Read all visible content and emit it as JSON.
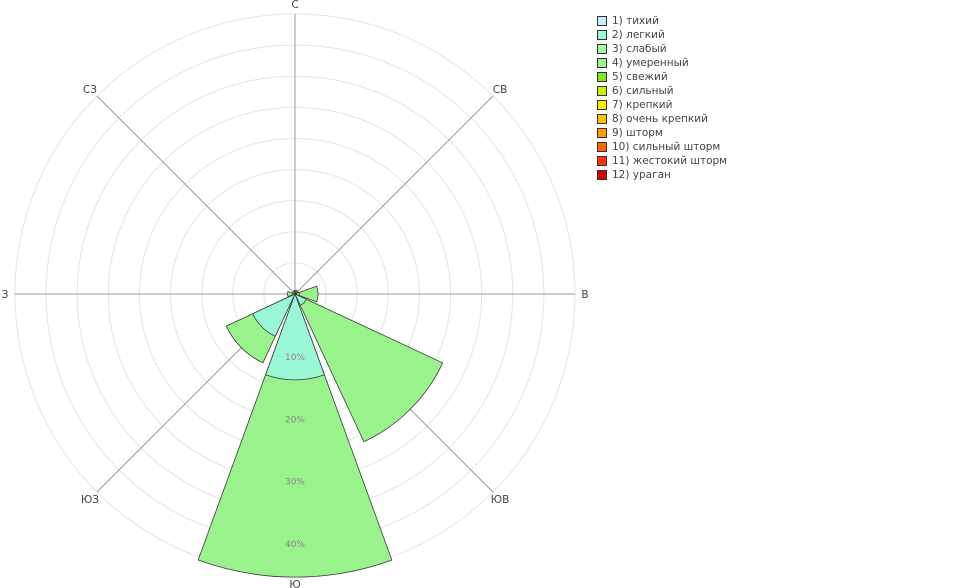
{
  "chart_data": {
    "type": "polar-bar",
    "directions": [
      "С",
      "СВ",
      "В",
      "ЮВ",
      "Ю",
      "ЮЗ",
      "З",
      "СЗ"
    ],
    "radial_ticks": [
      "10%",
      "20%",
      "30%",
      "40%"
    ],
    "rmax": 45,
    "grid": true,
    "legend_position": "top-right",
    "series": [
      {
        "name": "1) тихий",
        "color": "#bff0f7",
        "values": [
          0,
          0,
          0,
          0,
          0,
          0,
          0,
          0
        ]
      },
      {
        "name": "2) легкий",
        "color": "#99f7d6",
        "values": [
          0.4,
          0.4,
          0.7,
          2.0,
          13.8,
          7.5,
          0.4,
          0.4
        ]
      },
      {
        "name": "3) слабый",
        "color": "#a6f7a6",
        "values": [
          0,
          0,
          0,
          0,
          0,
          0,
          0,
          0
        ]
      },
      {
        "name": "4) умеренный",
        "color": "#99f28c",
        "values": [
          0.2,
          0.2,
          3.0,
          24.2,
          31.7,
          4.7,
          0.8,
          0
        ]
      },
      {
        "name": "5) свежий",
        "color": "#7fe61a",
        "values": [
          0,
          0,
          0,
          0,
          0,
          0,
          0,
          0
        ]
      },
      {
        "name": "6) сильный",
        "color": "#c8f000",
        "values": [
          0,
          0,
          0,
          0,
          0,
          0,
          0,
          0
        ]
      },
      {
        "name": "7) крепкий",
        "color": "#ffee00",
        "values": [
          0,
          0,
          0,
          0,
          0,
          0,
          0,
          0
        ]
      },
      {
        "name": "8) очень крепкий",
        "color": "#ffc000",
        "values": [
          0,
          0,
          0,
          0,
          0,
          0,
          0,
          0
        ]
      },
      {
        "name": "9) шторм",
        "color": "#ff9900",
        "values": [
          0,
          0,
          0,
          0,
          0,
          0,
          0,
          0
        ]
      },
      {
        "name": "10) сильный шторм",
        "color": "#ff6600",
        "values": [
          0,
          0,
          0,
          0,
          0,
          0,
          0,
          0
        ]
      },
      {
        "name": "11) жестокий шторм",
        "color": "#ff3300",
        "values": [
          0,
          0,
          0,
          0,
          0,
          0,
          0,
          0
        ]
      },
      {
        "name": "12) ураган",
        "color": "#e00000",
        "values": [
          0,
          0,
          0,
          0,
          0,
          0,
          0,
          0
        ]
      }
    ]
  }
}
